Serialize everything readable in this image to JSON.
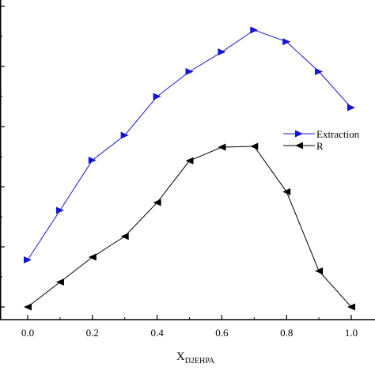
{
  "chart_data": {
    "type": "line",
    "xlabel_main": "X",
    "xlabel_sub": "D2EHPA",
    "xlim": [
      0.0,
      1.0
    ],
    "x_ticks": [
      "0.0",
      "0.2",
      "0.4",
      "0.6",
      "0.8",
      "1.0"
    ],
    "x_minor_ticks": [
      0.1,
      0.3,
      0.5,
      0.7,
      0.9
    ],
    "x": [
      0.0,
      0.1,
      0.2,
      0.3,
      0.4,
      0.5,
      0.6,
      0.7,
      0.8,
      0.9,
      1.0
    ],
    "legend_position": "right",
    "grid": false,
    "series": [
      {
        "name": "Extraction",
        "color": "#1414d2",
        "marker": "triangle-right",
        "values": [
          0.17,
          0.349,
          0.53,
          0.62,
          0.76,
          0.85,
          0.921,
          1.0,
          0.958,
          0.85,
          0.72
        ]
      },
      {
        "name": "R",
        "color": "#000000",
        "marker": "triangle-left",
        "values": [
          0.0,
          0.09,
          0.18,
          0.255,
          0.377,
          0.528,
          0.577,
          0.58,
          0.416,
          0.13,
          0.0
        ]
      }
    ]
  }
}
